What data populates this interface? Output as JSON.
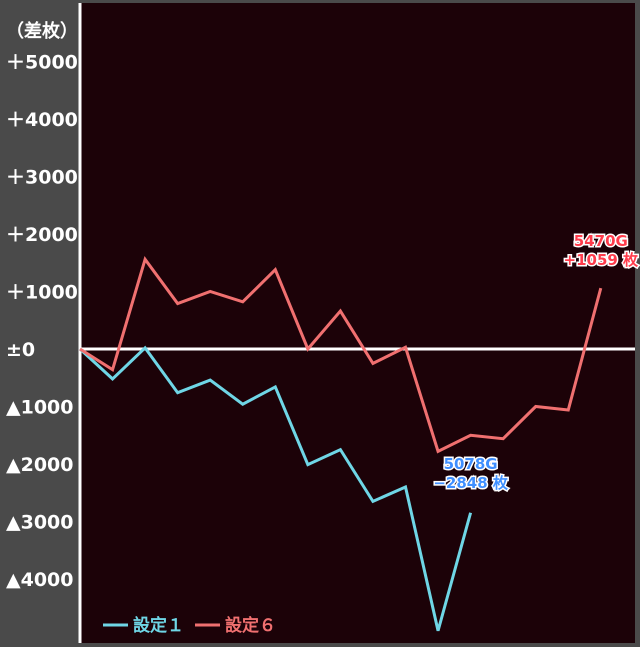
{
  "chart_data": {
    "type": "line",
    "ylabel": "（差枚）",
    "ylim": [
      -4900,
      5700
    ],
    "y_ticks": [
      5000,
      4000,
      3000,
      2000,
      1000,
      0,
      -1000,
      -2000,
      -3000,
      -4000
    ],
    "y_tick_labels": [
      "＋5000",
      "＋4000",
      "＋3000",
      "＋2000",
      "＋1000",
      "±0",
      "▲1000",
      "▲2000",
      "▲3000",
      "▲4000"
    ],
    "grid": false,
    "legend_position": "bottom-left",
    "x_count": 16,
    "series": [
      {
        "name": "設定１",
        "color": "#6fd6e6",
        "values": [
          0,
          -520,
          20,
          -760,
          -540,
          -960,
          -660,
          -2010,
          -1750,
          -2650,
          -2400,
          -4900,
          -2848
        ],
        "end_label": [
          "5078G",
          "−2848 枚"
        ],
        "end_label_color": "#3f8fff"
      },
      {
        "name": "設定６",
        "color": "#f07070",
        "values": [
          0,
          -360,
          1560,
          790,
          1000,
          820,
          1380,
          0,
          660,
          -250,
          30,
          -1780,
          -1500,
          -1560,
          -1000,
          -1060,
          1059
        ],
        "end_label": [
          "5470G",
          "+1059 枚"
        ],
        "end_label_color": "#ff3c4c"
      }
    ]
  },
  "colors": {
    "plot_bg": "#1c0208",
    "frame_bg": "#4a4a4a",
    "zero_line": "#ffffff",
    "text": "#ffffff"
  }
}
